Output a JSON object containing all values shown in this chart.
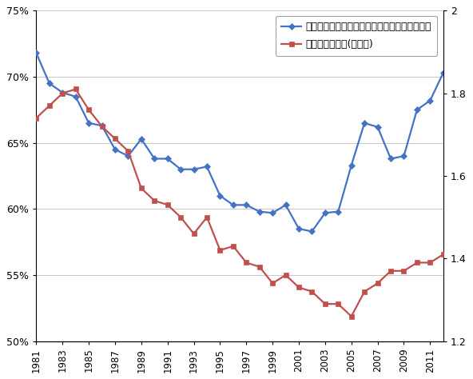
{
  "years": [
    1981,
    1982,
    1983,
    1984,
    1985,
    1986,
    1987,
    1988,
    1989,
    1990,
    1991,
    1992,
    1993,
    1994,
    1995,
    1996,
    1997,
    1998,
    1999,
    2000,
    2001,
    2002,
    2003,
    2004,
    2005,
    2006,
    2007,
    2008,
    2009,
    2010,
    2011,
    2012
  ],
  "wage_ratio": [
    71.8,
    69.5,
    68.8,
    68.5,
    66.5,
    66.3,
    64.5,
    64.0,
    65.3,
    63.8,
    63.8,
    63.0,
    63.0,
    63.2,
    61.0,
    60.3,
    60.3,
    59.8,
    59.7,
    60.3,
    58.5,
    58.3,
    59.7,
    59.8,
    63.3,
    66.5,
    66.2,
    63.8,
    64.0,
    67.5,
    68.2,
    70.3
  ],
  "tfr": [
    1.74,
    1.77,
    1.8,
    1.81,
    1.76,
    1.72,
    1.69,
    1.66,
    1.57,
    1.54,
    1.53,
    1.5,
    1.46,
    1.5,
    1.42,
    1.43,
    1.39,
    1.38,
    1.34,
    1.36,
    1.33,
    1.32,
    1.29,
    1.29,
    1.26,
    1.32,
    1.34,
    1.37,
    1.37,
    1.39,
    1.39,
    1.41
  ],
  "line1_color": "#4472C4",
  "line2_color": "#C0504D",
  "line1_label": "フルタイム・パートタイム時間あたり賃金比率",
  "line2_label": "合計特殊出生率(右目盛)",
  "ylim_left": [
    50,
    75
  ],
  "ylim_right": [
    1.2,
    2.0
  ],
  "yticks_left": [
    50,
    55,
    60,
    65,
    70,
    75
  ],
  "yticks_right": [
    1.2,
    1.4,
    1.6,
    1.8,
    2.0
  ],
  "background_color": "#FFFFFF",
  "grid_color": "#C8C8C8",
  "figsize": [
    5.92,
    4.74
  ],
  "dpi": 100
}
